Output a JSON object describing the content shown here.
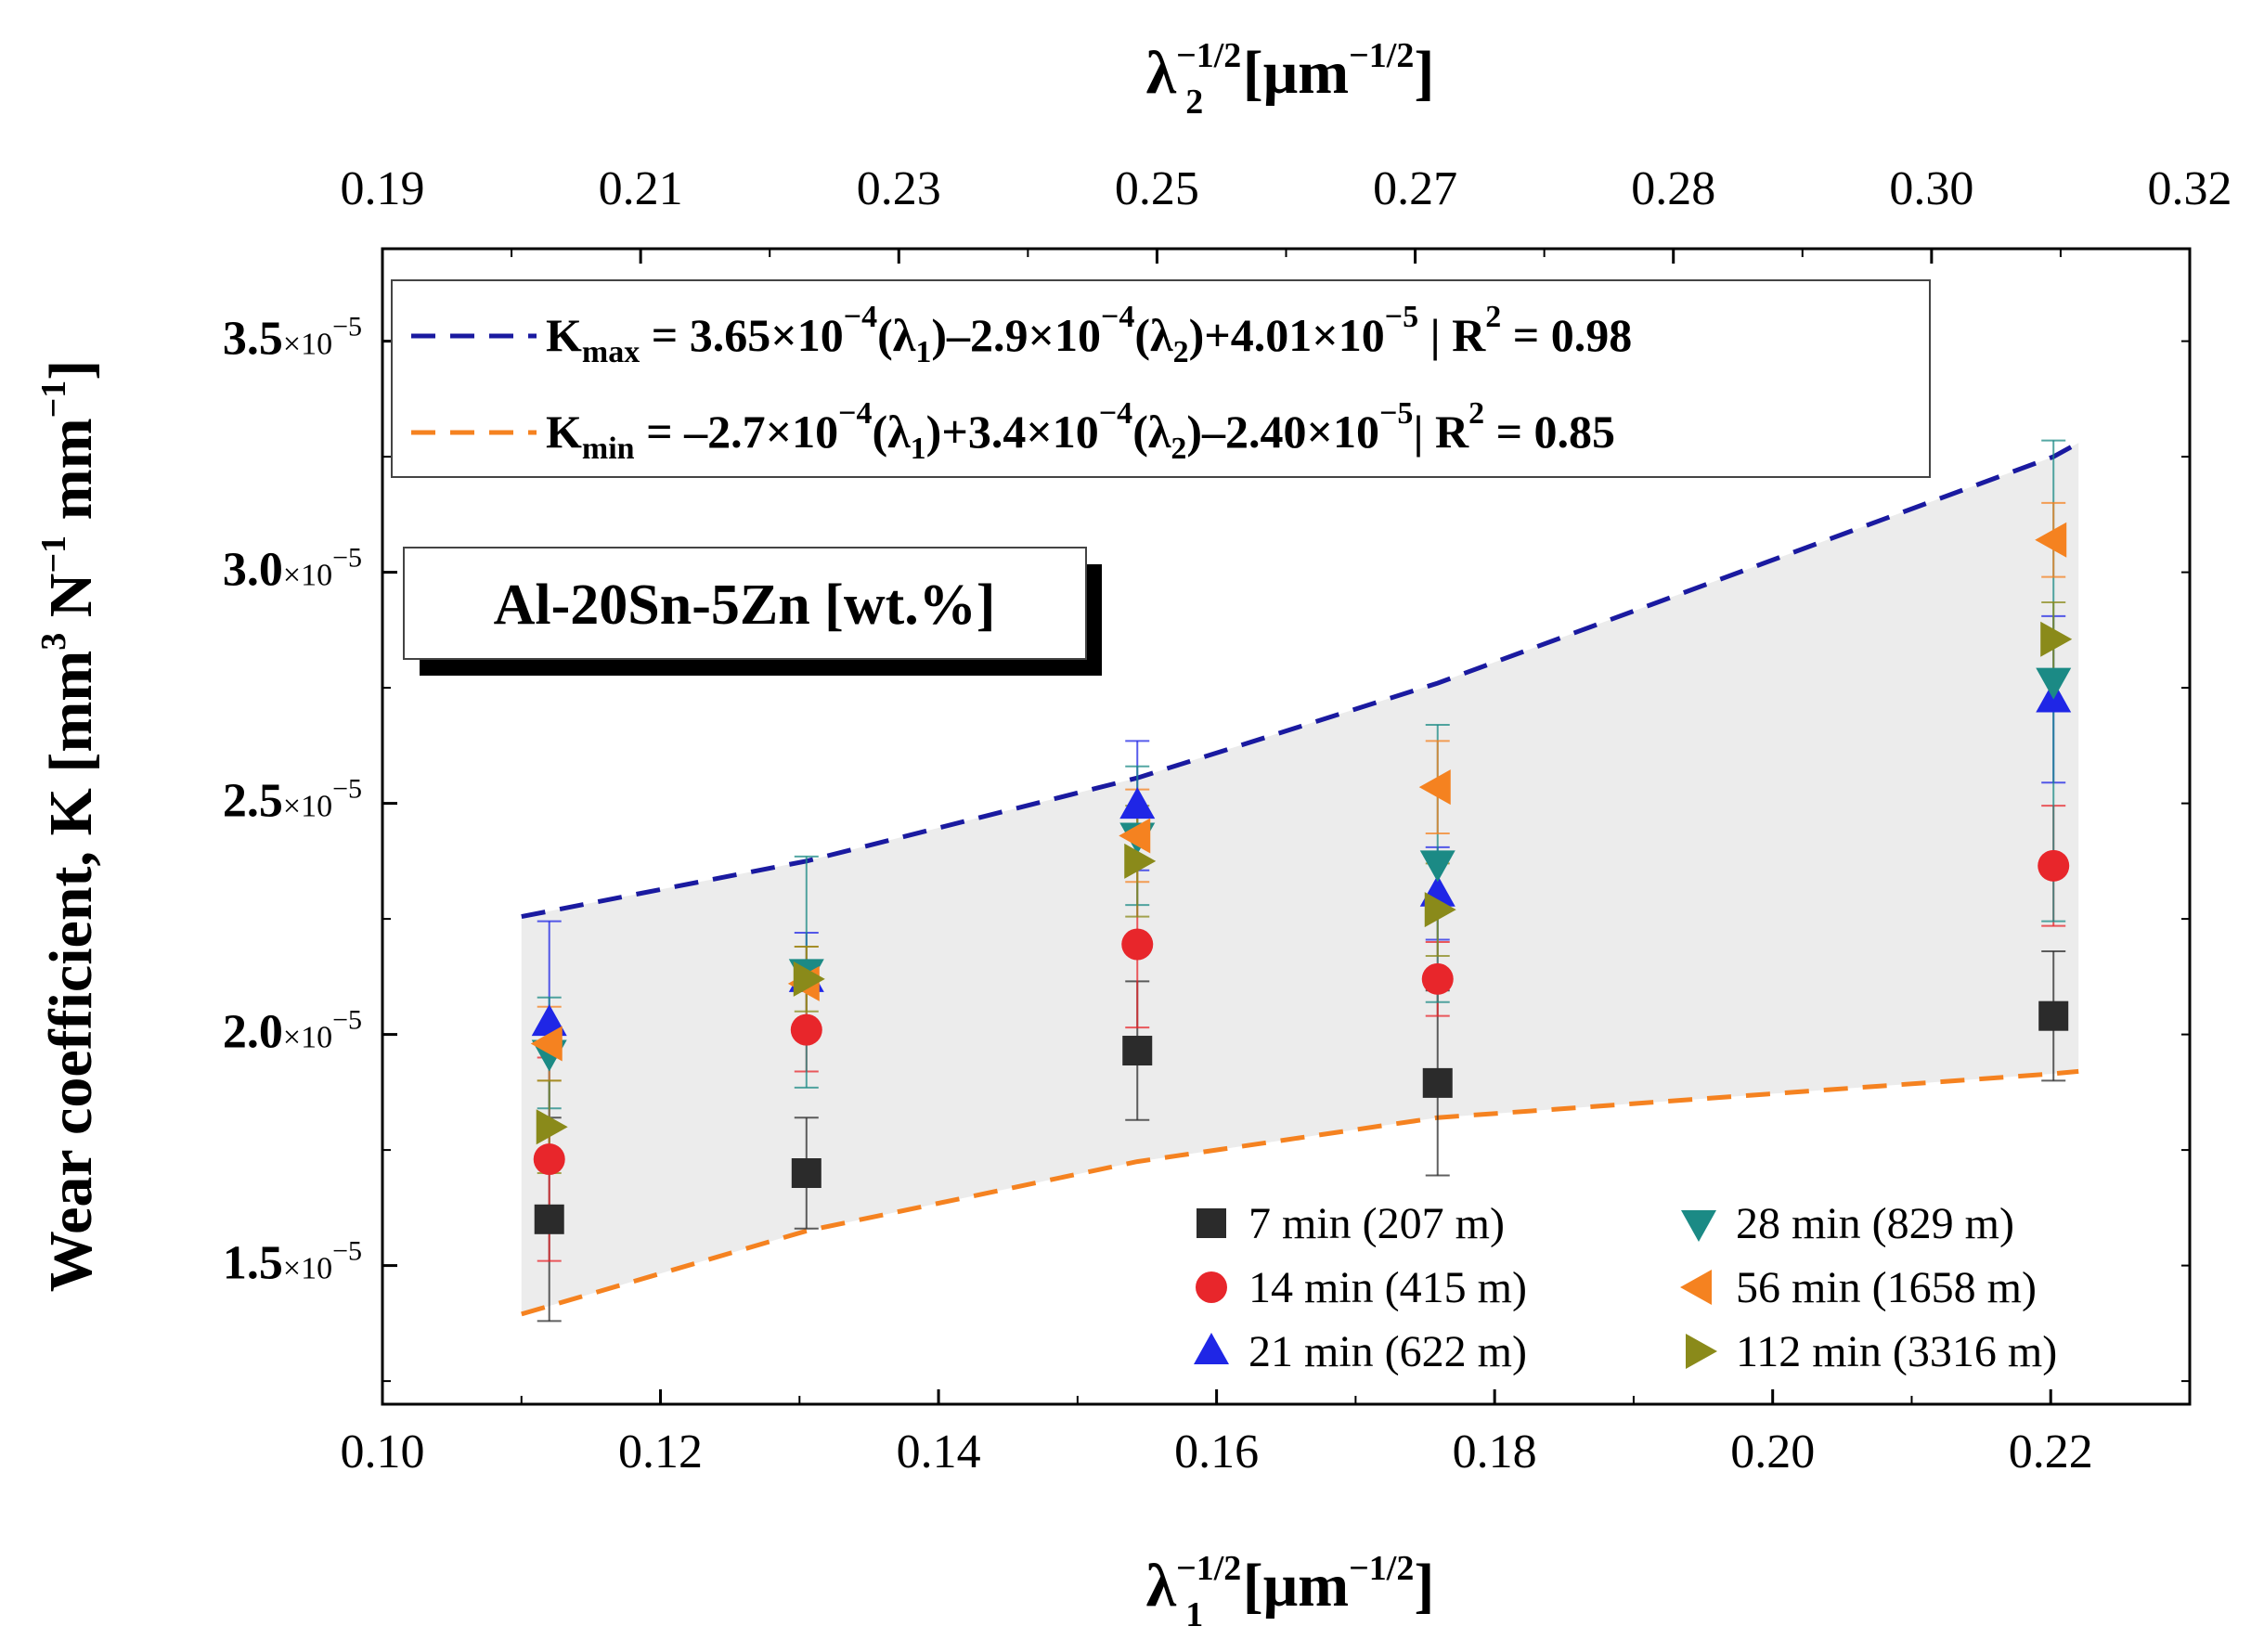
{
  "chart_data": {
    "type": "scatter",
    "xlabel_bottom": {
      "main": "λ",
      "sub": "1",
      "sup": "−1/2",
      "unit_open": " [μm",
      "unit_sup": "−1/2",
      "unit_close": "]"
    },
    "xlabel_top": {
      "main": "λ",
      "sub": "2",
      "sup": "−1/2",
      "unit_open": " [μm",
      "unit_sup": "−1/2",
      "unit_close": "]"
    },
    "ylabel": {
      "prefix": "Wear coefficient, K [mm",
      "sup1": "3",
      "mid1": " N",
      "sup2": "−1",
      "mid2": " mm",
      "sup3": "−1",
      "close": "]"
    },
    "xlim": [
      0.1,
      0.23
    ],
    "ylim": [
      1.2e-05,
      3.7e-05
    ],
    "x_ticks": [
      "0.10",
      "0.12",
      "0.14",
      "0.16",
      "0.18",
      "0.20",
      "0.22"
    ],
    "x_tick_values": [
      0.1,
      0.12,
      0.14,
      0.16,
      0.18,
      0.2,
      0.22
    ],
    "top_ticks": [
      "0.19",
      "0.21",
      "0.23",
      "0.25",
      "0.27",
      "0.28",
      "0.30",
      "0.32"
    ],
    "y_ticks": [
      {
        "value": 1.5e-05,
        "mantissa": "1.5",
        "exp": "−5"
      },
      {
        "value": 2e-05,
        "mantissa": "2.0",
        "exp": "−5"
      },
      {
        "value": 2.5e-05,
        "mantissa": "2.5",
        "exp": "−5"
      },
      {
        "value": 3e-05,
        "mantissa": "3.0",
        "exp": "−5"
      },
      {
        "value": 3.5e-05,
        "mantissa": "3.5",
        "exp": "−5"
      }
    ],
    "x_positions": [
      0.112,
      0.1305,
      0.1543,
      0.1759,
      0.2202
    ],
    "series": [
      {
        "name": "7 min (207 m)",
        "marker": "square",
        "color": "#2b2b2b",
        "values": [
          1.6e-05,
          1.7e-05,
          1.965e-05,
          1.895e-05,
          2.04e-05
        ],
        "errors": [
          2.2e-06,
          1.2e-06,
          1.5e-06,
          2e-06,
          1.4e-06
        ]
      },
      {
        "name": "14 min (415 m)",
        "marker": "circle",
        "color": "#e8262b",
        "values": [
          1.73e-05,
          2.01e-05,
          2.195e-05,
          2.12e-05,
          2.365e-05
        ],
        "errors": [
          2.2e-06,
          9e-07,
          1.8e-06,
          8e-07,
          1.3e-06
        ]
      },
      {
        "name": "21 min (622 m)",
        "marker": "triangle-up",
        "color": "#1f26e6",
        "values": [
          2.025e-05,
          2.12e-05,
          2.495e-05,
          2.305e-05,
          2.725e-05
        ],
        "errors": [
          2.2e-06,
          1e-06,
          1.4e-06,
          1e-06,
          1.8e-06
        ]
      },
      {
        "name": "28 min (829 m)",
        "marker": "triangle-down",
        "color": "#1b8a85",
        "values": [
          1.96e-05,
          2.135e-05,
          2.43e-05,
          2.37e-05,
          2.765e-05
        ],
        "errors": [
          1.2e-06,
          2.5e-06,
          1.5e-06,
          3e-06,
          5.2e-06
        ]
      },
      {
        "name": "56 min (1658 m)",
        "marker": "triangle-left",
        "color": "#f58220",
        "values": [
          1.98e-05,
          2.11e-05,
          2.43e-05,
          2.535e-05,
          3.07e-05
        ],
        "errors": [
          8e-07,
          8e-07,
          1e-06,
          1e-06,
          8e-07
        ]
      },
      {
        "name": "112 min (3316 m)",
        "marker": "triangle-right",
        "color": "#8a8a1a",
        "values": [
          1.8e-05,
          2.12e-05,
          2.375e-05,
          2.27e-05,
          2.855e-05
        ],
        "errors": [
          1e-06,
          7e-07,
          1.2e-06,
          1e-06,
          8e-07
        ]
      }
    ],
    "fit_lines": [
      {
        "name": "K_max",
        "color": "#1a1aa0",
        "x": [
          0.11,
          0.1305,
          0.1543,
          0.1759,
          0.2202,
          0.222
        ],
        "y": [
          2.255e-05,
          2.375e-05,
          2.555e-05,
          2.76e-05,
          3.25e-05,
          3.28e-05
        ],
        "label_main": "K",
        "label_sub": "max",
        "eq_text_parts": [
          " = 3.65×10",
          "−4",
          "(λ",
          "1",
          ")–2.9×10",
          "−4",
          "(λ",
          "2",
          ")+4.01×10",
          "−5",
          " |  R",
          "2",
          " = 0.98"
        ]
      },
      {
        "name": "K_min",
        "color": "#f58220",
        "x": [
          0.11,
          0.1305,
          0.1543,
          0.1759,
          0.2202,
          0.222
        ],
        "y": [
          1.395e-05,
          1.575e-05,
          1.725e-05,
          1.82e-05,
          1.915e-05,
          1.92e-05
        ],
        "label_main": "K",
        "label_sub": "min",
        "eq_text_parts": [
          " = –2.7×10",
          "−4",
          "(λ",
          "1",
          ")+3.4×10",
          "−4",
          "(λ",
          "2",
          ")–2.40×10",
          "−5",
          "|  R",
          "2",
          " = 0.85"
        ]
      }
    ],
    "shaded_band": {
      "color": "#ececec"
    },
    "sample_label": "Al-20Sn-5Zn [wt.%]",
    "legend_placement": "bottom-right",
    "grid": false
  }
}
